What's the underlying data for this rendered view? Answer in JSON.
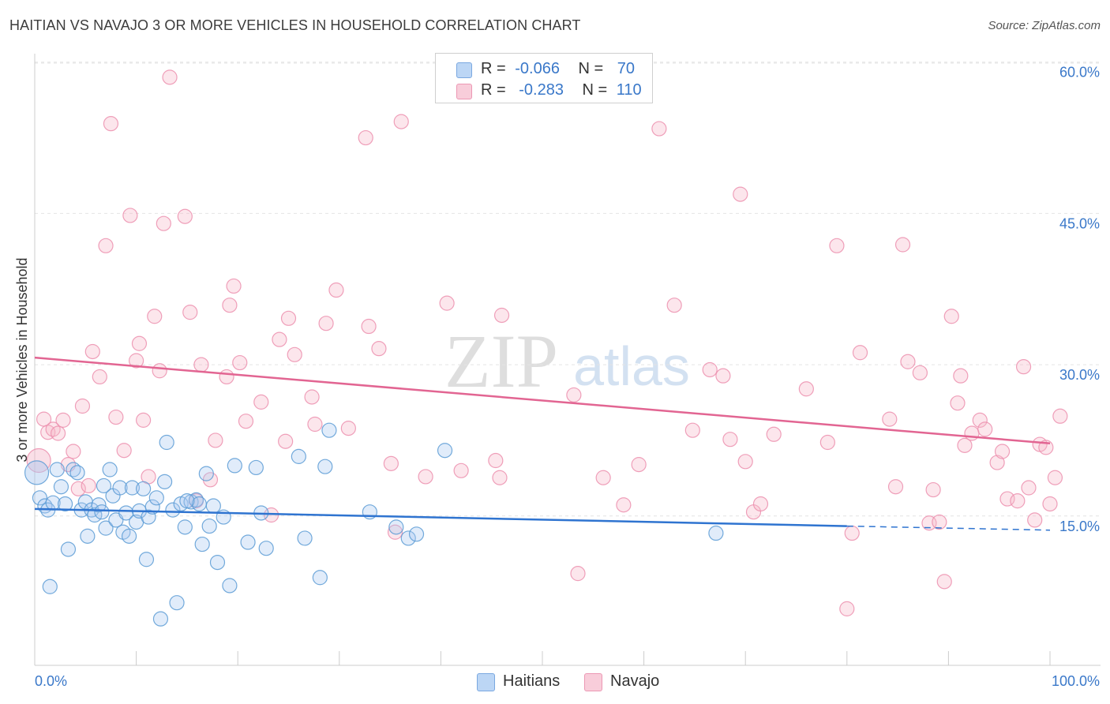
{
  "header": {
    "title": "HAITIAN VS NAVAJO 3 OR MORE VEHICLES IN HOUSEHOLD CORRELATION CHART",
    "source": "Source: ZipAtlas.com"
  },
  "legend": {
    "rows": [
      {
        "r_label": "R =",
        "r_value": "-0.066",
        "n_label": "N =",
        "n_value": "70",
        "color": "#a9c8f0"
      },
      {
        "r_label": "R =",
        "r_value": "-0.283",
        "n_label": "N =",
        "n_value": "110",
        "color": "#f5b7c9"
      }
    ]
  },
  "bottom_legend": [
    "Haitians",
    "Navajo"
  ],
  "watermark": {
    "zip": "ZIP",
    "atlas": "atlas"
  },
  "chart_data": {
    "type": "scatter",
    "ylabel": "3 or more Vehicles in Household",
    "xlabel": "",
    "xlim": [
      0,
      100
    ],
    "ylim": [
      0,
      65
    ],
    "x_tick_labels": [
      "0.0%",
      "100.0%"
    ],
    "y_ticks": [
      15,
      30,
      45,
      60
    ],
    "y_tick_labels": [
      "15.0%",
      "30.0%",
      "45.0%",
      "60.0%"
    ],
    "grid": "horizontal dashed",
    "colors": {
      "Haitians": "#5b9bd5",
      "Navajo": "#ec8fae",
      "haitians_line": "#2f74d0",
      "navajo_line": "#e26592"
    },
    "series": [
      {
        "name": "Haitians",
        "trend": {
          "x0": 0,
          "y0": 15.7,
          "x1": 80,
          "y1": 14.0,
          "dashed_to_x": 100,
          "dashed_to_y": 13.6
        },
        "points": [
          [
            0.2,
            19.3
          ],
          [
            0.5,
            16.8
          ],
          [
            1.0,
            16.0
          ],
          [
            1.3,
            15.6
          ],
          [
            1.5,
            8.0
          ],
          [
            1.8,
            16.3
          ],
          [
            2.2,
            19.6
          ],
          [
            2.6,
            17.9
          ],
          [
            3.0,
            16.2
          ],
          [
            3.3,
            11.7
          ],
          [
            3.8,
            19.6
          ],
          [
            4.2,
            19.3
          ],
          [
            4.6,
            15.6
          ],
          [
            5.0,
            16.4
          ],
          [
            5.2,
            13.0
          ],
          [
            5.6,
            15.6
          ],
          [
            5.9,
            15.1
          ],
          [
            6.3,
            16.1
          ],
          [
            6.6,
            15.4
          ],
          [
            7.0,
            13.8
          ],
          [
            7.4,
            19.6
          ],
          [
            7.7,
            17.0
          ],
          [
            8.0,
            14.6
          ],
          [
            8.4,
            17.8
          ],
          [
            8.7,
            13.4
          ],
          [
            9.0,
            15.3
          ],
          [
            9.3,
            13.0
          ],
          [
            9.6,
            17.8
          ],
          [
            10.0,
            14.4
          ],
          [
            10.3,
            15.5
          ],
          [
            10.7,
            17.7
          ],
          [
            11.0,
            10.7
          ],
          [
            11.2,
            14.9
          ],
          [
            11.6,
            15.9
          ],
          [
            12.0,
            16.8
          ],
          [
            12.4,
            4.8
          ],
          [
            12.8,
            18.4
          ],
          [
            13.0,
            22.3
          ],
          [
            13.6,
            15.6
          ],
          [
            14.0,
            6.4
          ],
          [
            14.4,
            16.2
          ],
          [
            14.8,
            13.9
          ],
          [
            15.4,
            16.4
          ],
          [
            15.9,
            16.6
          ],
          [
            16.2,
            16.2
          ],
          [
            16.5,
            12.2
          ],
          [
            16.9,
            19.2
          ],
          [
            17.2,
            14.0
          ],
          [
            17.6,
            16.0
          ],
          [
            18.0,
            10.4
          ],
          [
            18.6,
            14.9
          ],
          [
            19.2,
            8.1
          ],
          [
            19.7,
            20.0
          ],
          [
            21.0,
            12.4
          ],
          [
            21.8,
            19.8
          ],
          [
            22.3,
            15.3
          ],
          [
            22.8,
            11.8
          ],
          [
            26.0,
            20.9
          ],
          [
            26.6,
            12.8
          ],
          [
            28.1,
            8.9
          ],
          [
            28.6,
            19.9
          ],
          [
            29.0,
            23.5
          ],
          [
            33.0,
            15.4
          ],
          [
            35.6,
            13.9
          ],
          [
            36.8,
            12.8
          ],
          [
            37.6,
            13.2
          ],
          [
            40.4,
            21.5
          ],
          [
            67.1,
            13.3
          ],
          [
            6.8,
            18.0
          ],
          [
            15.0,
            16.5
          ]
        ]
      },
      {
        "name": "Navajo",
        "trend": {
          "x0": 0,
          "y0": 30.7,
          "x1": 100,
          "y1": 22.2
        },
        "points": [
          [
            0.4,
            20.5
          ],
          [
            0.9,
            24.6
          ],
          [
            1.3,
            23.3
          ],
          [
            1.8,
            23.6
          ],
          [
            2.3,
            23.2
          ],
          [
            2.8,
            24.5
          ],
          [
            3.3,
            20.1
          ],
          [
            3.8,
            21.4
          ],
          [
            4.3,
            17.7
          ],
          [
            4.7,
            25.9
          ],
          [
            5.3,
            18.0
          ],
          [
            5.7,
            31.3
          ],
          [
            6.4,
            28.8
          ],
          [
            7.0,
            41.8
          ],
          [
            7.5,
            53.9
          ],
          [
            8.0,
            24.8
          ],
          [
            8.8,
            21.5
          ],
          [
            9.4,
            44.8
          ],
          [
            10.0,
            30.4
          ],
          [
            10.3,
            32.1
          ],
          [
            10.7,
            24.5
          ],
          [
            11.2,
            18.9
          ],
          [
            11.8,
            34.8
          ],
          [
            12.3,
            29.4
          ],
          [
            12.7,
            44.0
          ],
          [
            13.3,
            58.5
          ],
          [
            14.8,
            44.7
          ],
          [
            15.3,
            35.2
          ],
          [
            15.9,
            16.5
          ],
          [
            16.4,
            30.0
          ],
          [
            17.3,
            18.6
          ],
          [
            17.8,
            22.5
          ],
          [
            18.9,
            28.8
          ],
          [
            19.2,
            35.9
          ],
          [
            19.6,
            37.8
          ],
          [
            20.2,
            30.2
          ],
          [
            20.8,
            24.4
          ],
          [
            22.3,
            26.3
          ],
          [
            23.3,
            15.1
          ],
          [
            24.1,
            32.5
          ],
          [
            24.7,
            22.4
          ],
          [
            25.0,
            34.6
          ],
          [
            25.6,
            31.0
          ],
          [
            27.3,
            26.8
          ],
          [
            27.6,
            24.1
          ],
          [
            28.7,
            34.1
          ],
          [
            29.7,
            37.4
          ],
          [
            30.9,
            23.7
          ],
          [
            32.6,
            52.5
          ],
          [
            32.9,
            33.8
          ],
          [
            33.9,
            31.6
          ],
          [
            35.1,
            20.2
          ],
          [
            35.5,
            13.4
          ],
          [
            36.1,
            54.1
          ],
          [
            38.5,
            18.9
          ],
          [
            40.6,
            36.1
          ],
          [
            42.0,
            19.5
          ],
          [
            45.4,
            20.5
          ],
          [
            45.8,
            18.8
          ],
          [
            46.0,
            34.9
          ],
          [
            53.1,
            27.0
          ],
          [
            53.5,
            9.3
          ],
          [
            56.0,
            18.8
          ],
          [
            58.0,
            16.1
          ],
          [
            59.5,
            20.1
          ],
          [
            61.5,
            53.4
          ],
          [
            63.0,
            35.9
          ],
          [
            64.8,
            23.5
          ],
          [
            66.5,
            29.5
          ],
          [
            67.8,
            28.9
          ],
          [
            68.5,
            22.6
          ],
          [
            69.5,
            46.9
          ],
          [
            70.0,
            20.4
          ],
          [
            70.8,
            15.4
          ],
          [
            71.5,
            16.2
          ],
          [
            72.8,
            23.1
          ],
          [
            76.0,
            27.6
          ],
          [
            78.1,
            22.3
          ],
          [
            79.0,
            41.8
          ],
          [
            80.0,
            5.8
          ],
          [
            80.5,
            13.3
          ],
          [
            81.3,
            31.2
          ],
          [
            84.2,
            24.6
          ],
          [
            84.8,
            17.9
          ],
          [
            85.5,
            41.9
          ],
          [
            86.0,
            30.3
          ],
          [
            87.2,
            29.2
          ],
          [
            88.1,
            14.3
          ],
          [
            88.5,
            17.6
          ],
          [
            89.1,
            14.4
          ],
          [
            89.6,
            8.5
          ],
          [
            90.3,
            34.8
          ],
          [
            90.9,
            26.2
          ],
          [
            91.2,
            28.9
          ],
          [
            91.6,
            22.0
          ],
          [
            92.3,
            23.2
          ],
          [
            93.1,
            24.5
          ],
          [
            93.6,
            23.6
          ],
          [
            94.8,
            20.3
          ],
          [
            95.3,
            21.4
          ],
          [
            95.8,
            16.7
          ],
          [
            96.8,
            16.5
          ],
          [
            97.4,
            29.8
          ],
          [
            97.9,
            17.8
          ],
          [
            98.5,
            14.6
          ],
          [
            99.0,
            22.1
          ],
          [
            99.6,
            21.8
          ],
          [
            100.0,
            16.2
          ],
          [
            100.5,
            18.8
          ],
          [
            101.0,
            24.9
          ]
        ]
      }
    ]
  }
}
